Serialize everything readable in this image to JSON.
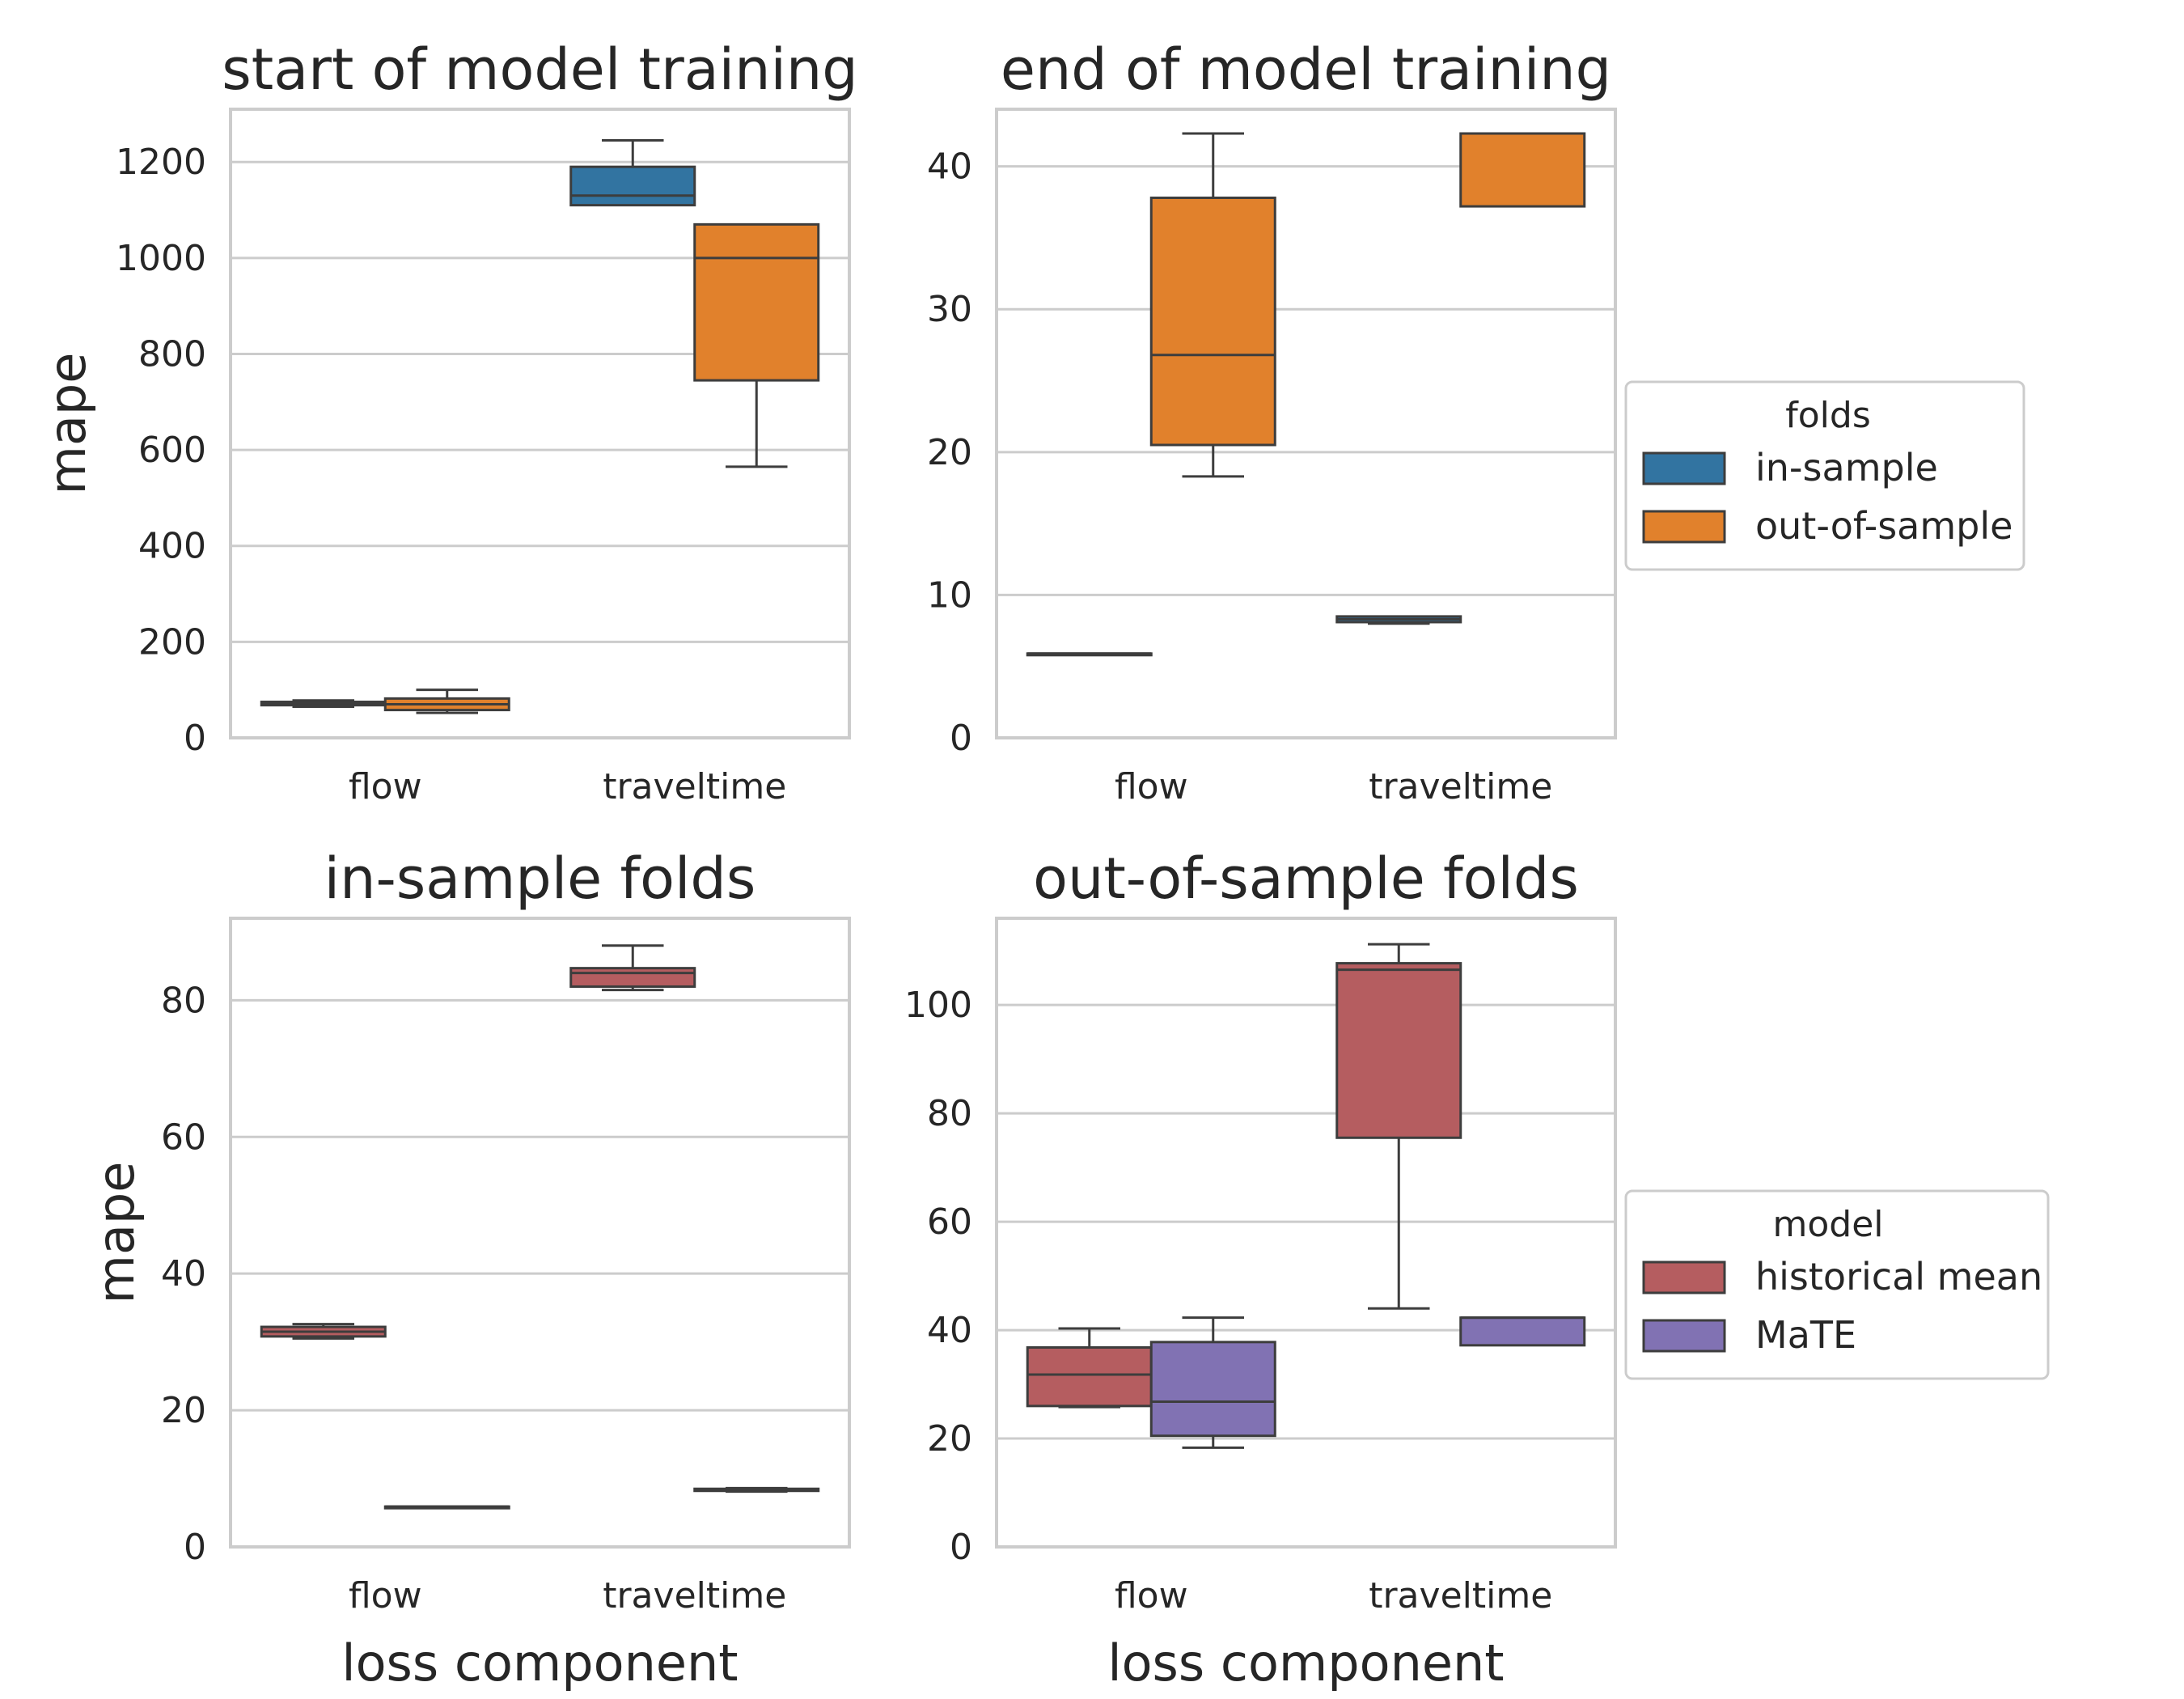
{
  "chart_data": [
    {
      "type": "box",
      "title": "start of model training",
      "xlabel": "",
      "ylabel": "mape",
      "categories": [
        "flow",
        "traveltime"
      ],
      "yticks": [
        0,
        200,
        400,
        600,
        800,
        1000,
        1200
      ],
      "ylim": [
        0,
        1310
      ],
      "grid": true,
      "series": [
        {
          "name": "in-sample",
          "color": "#3274a1",
          "boxes": [
            {
              "min": 65,
              "q1": 68,
              "median": 72,
              "q3": 75,
              "max": 78
            },
            {
              "min": 1110,
              "q1": 1110,
              "median": 1130,
              "q3": 1190,
              "max": 1245
            }
          ]
        },
        {
          "name": "out-of-sample",
          "color": "#e1812c",
          "boxes": [
            {
              "min": 52,
              "q1": 58,
              "median": 70,
              "q3": 82,
              "max": 100
            },
            {
              "min": 565,
              "q1": 745,
              "median": 1000,
              "q3": 1070,
              "max": 1070
            }
          ]
        }
      ]
    },
    {
      "type": "box",
      "title": "end of model training",
      "xlabel": "",
      "ylabel": "",
      "categories": [
        "flow",
        "traveltime"
      ],
      "yticks": [
        0,
        10,
        20,
        30,
        40
      ],
      "ylim": [
        0,
        44
      ],
      "grid": true,
      "legend": {
        "title": "folds",
        "items": [
          "in-sample",
          "out-of-sample"
        ],
        "placement": "right"
      },
      "series": [
        {
          "name": "in-sample",
          "color": "#3274a1",
          "boxes": [
            {
              "min": 5.9,
              "q1": 5.9,
              "median": 5.9,
              "q3": 5.9,
              "max": 5.9
            },
            {
              "min": 8.0,
              "q1": 8.1,
              "median": 8.3,
              "q3": 8.5,
              "max": 8.5
            }
          ]
        },
        {
          "name": "out-of-sample",
          "color": "#e1812c",
          "boxes": [
            {
              "min": 18.3,
              "q1": 20.5,
              "median": 26.8,
              "q3": 37.8,
              "max": 42.3
            },
            {
              "min": 37.2,
              "q1": 37.2,
              "median": 42.3,
              "q3": 42.3,
              "max": 42.3
            }
          ]
        }
      ]
    },
    {
      "type": "box",
      "title": "in-sample folds",
      "xlabel": "loss component",
      "ylabel": "mape",
      "categories": [
        "flow",
        "traveltime"
      ],
      "yticks": [
        0,
        20,
        40,
        60,
        80
      ],
      "ylim": [
        0,
        92
      ],
      "grid": true,
      "series": [
        {
          "name": "historical mean",
          "color": "#b55d60",
          "boxes": [
            {
              "min": 30.5,
              "q1": 30.8,
              "median": 31.5,
              "q3": 32.2,
              "max": 32.6
            },
            {
              "min": 81.5,
              "q1": 82.0,
              "median": 84.0,
              "q3": 84.7,
              "max": 88.0
            }
          ]
        },
        {
          "name": "MaTE",
          "color": "#8172b3",
          "boxes": [
            {
              "min": 5.9,
              "q1": 5.9,
              "median": 5.9,
              "q3": 5.9,
              "max": 5.9
            },
            {
              "min": 8.1,
              "q1": 8.2,
              "median": 8.3,
              "q3": 8.5,
              "max": 8.6
            }
          ]
        }
      ]
    },
    {
      "type": "box",
      "title": "out-of-sample folds",
      "xlabel": "loss component",
      "ylabel": "",
      "categories": [
        "flow",
        "traveltime"
      ],
      "yticks": [
        0,
        20,
        40,
        60,
        80,
        100
      ],
      "ylim": [
        0,
        116
      ],
      "grid": true,
      "legend": {
        "title": "model",
        "items": [
          "historical mean",
          "MaTE"
        ],
        "placement": "right"
      },
      "series": [
        {
          "name": "historical mean",
          "color": "#b55d60",
          "boxes": [
            {
              "min": 25.8,
              "q1": 26.0,
              "median": 31.8,
              "q3": 36.8,
              "max": 40.3
            },
            {
              "min": 44.0,
              "q1": 75.5,
              "median": 106.5,
              "q3": 107.7,
              "max": 111.2
            }
          ]
        },
        {
          "name": "MaTE",
          "color": "#8172b3",
          "boxes": [
            {
              "min": 18.3,
              "q1": 20.5,
              "median": 26.8,
              "q3": 37.8,
              "max": 42.3
            },
            {
              "min": 37.2,
              "q1": 37.2,
              "median": 42.3,
              "q3": 42.3,
              "max": 42.3
            }
          ]
        }
      ]
    }
  ]
}
